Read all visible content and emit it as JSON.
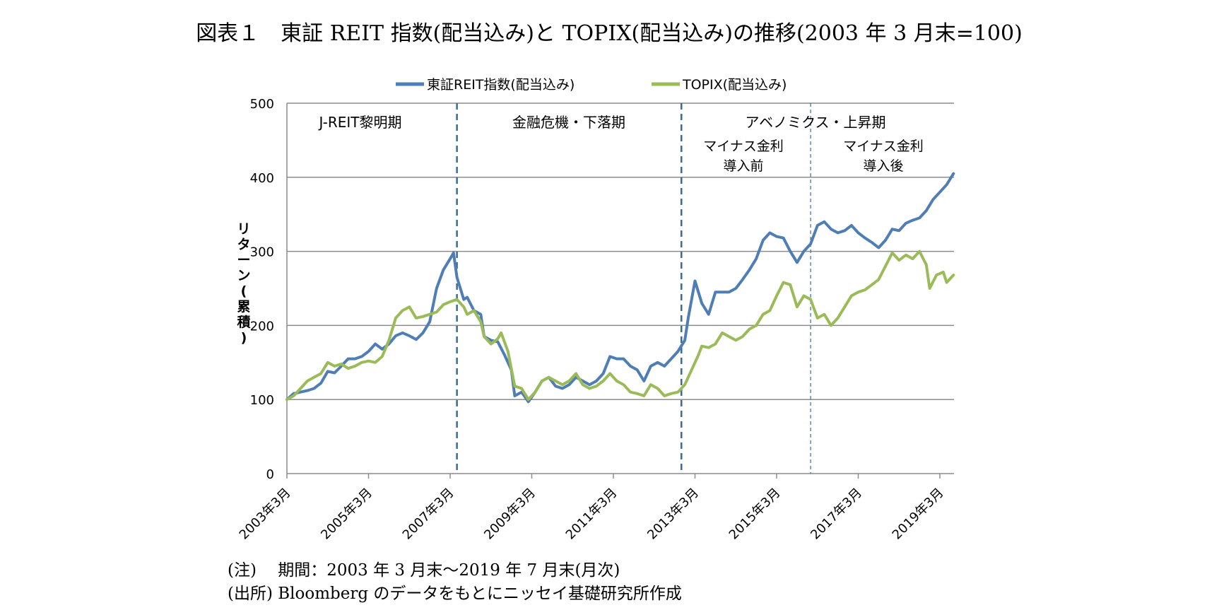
{
  "notes": {
    "period": "(注)　 期間：2003 年 3 月末～2019 年 7 月末(月次)",
    "source": "(出所) Bloomberg のデータをもとにニッセイ基礎研究所作成"
  },
  "chart_data": {
    "type": "line",
    "title": "図表１　東証 REIT 指数(配当込み)と TOPIX(配当込み)の推移(2003 年 3 月末=100)",
    "ylabel": "リターン(累積)",
    "xlabel": "",
    "ylim": [
      0,
      500
    ],
    "xlim": [
      "2003-03",
      "2019-07"
    ],
    "y_ticks": [
      "0",
      "100",
      "200",
      "300",
      "400",
      "500"
    ],
    "x_ticks": [
      "2003年3月",
      "2005年3月",
      "2007年3月",
      "2009年3月",
      "2011年3月",
      "2013年3月",
      "2015年3月",
      "2017年3月",
      "2019年3月"
    ],
    "grid": "horizontal",
    "legend": "top-center",
    "series": [
      {
        "name": "東証REIT指数(配当込み)",
        "color": "#4f7db5",
        "points": [
          [
            "2003-03",
            100
          ],
          [
            "2003-05",
            108
          ],
          [
            "2003-07",
            110
          ],
          [
            "2003-09",
            112
          ],
          [
            "2003-11",
            115
          ],
          [
            "2004-01",
            122
          ],
          [
            "2004-03",
            138
          ],
          [
            "2004-05",
            136
          ],
          [
            "2004-07",
            145
          ],
          [
            "2004-09",
            155
          ],
          [
            "2004-11",
            155
          ],
          [
            "2005-01",
            158
          ],
          [
            "2005-03",
            165
          ],
          [
            "2005-05",
            175
          ],
          [
            "2005-07",
            168
          ],
          [
            "2005-09",
            175
          ],
          [
            "2005-11",
            186
          ],
          [
            "2006-01",
            190
          ],
          [
            "2006-03",
            186
          ],
          [
            "2006-05",
            181
          ],
          [
            "2006-07",
            190
          ],
          [
            "2006-09",
            205
          ],
          [
            "2006-11",
            250
          ],
          [
            "2007-01",
            275
          ],
          [
            "2007-03",
            290
          ],
          [
            "2007-04",
            298
          ],
          [
            "2007-05",
            265
          ],
          [
            "2007-07",
            235
          ],
          [
            "2007-08",
            238
          ],
          [
            "2007-10",
            220
          ],
          [
            "2007-12",
            215
          ],
          [
            "2008-01",
            185
          ],
          [
            "2008-03",
            180
          ],
          [
            "2008-05",
            178
          ],
          [
            "2008-07",
            160
          ],
          [
            "2008-09",
            140
          ],
          [
            "2008-10",
            105
          ],
          [
            "2008-12",
            110
          ],
          [
            "2009-02",
            97
          ],
          [
            "2009-04",
            110
          ],
          [
            "2009-06",
            125
          ],
          [
            "2009-08",
            130
          ],
          [
            "2009-10",
            118
          ],
          [
            "2009-12",
            115
          ],
          [
            "2010-02",
            120
          ],
          [
            "2010-04",
            130
          ],
          [
            "2010-06",
            125
          ],
          [
            "2010-08",
            120
          ],
          [
            "2010-10",
            125
          ],
          [
            "2010-12",
            135
          ],
          [
            "2011-02",
            158
          ],
          [
            "2011-04",
            155
          ],
          [
            "2011-06",
            155
          ],
          [
            "2011-08",
            145
          ],
          [
            "2011-10",
            140
          ],
          [
            "2011-12",
            125
          ],
          [
            "2012-02",
            145
          ],
          [
            "2012-04",
            150
          ],
          [
            "2012-06",
            145
          ],
          [
            "2012-08",
            155
          ],
          [
            "2012-10",
            165
          ],
          [
            "2012-12",
            180
          ],
          [
            "2013-01",
            210
          ],
          [
            "2013-03",
            260
          ],
          [
            "2013-05",
            230
          ],
          [
            "2013-07",
            215
          ],
          [
            "2013-09",
            245
          ],
          [
            "2013-11",
            245
          ],
          [
            "2014-01",
            245
          ],
          [
            "2014-03",
            250
          ],
          [
            "2014-05",
            262
          ],
          [
            "2014-07",
            275
          ],
          [
            "2014-09",
            290
          ],
          [
            "2014-11",
            315
          ],
          [
            "2015-01",
            325
          ],
          [
            "2015-03",
            320
          ],
          [
            "2015-05",
            318
          ],
          [
            "2015-07",
            300
          ],
          [
            "2015-09",
            285
          ],
          [
            "2015-11",
            300
          ],
          [
            "2016-01",
            310
          ],
          [
            "2016-03",
            335
          ],
          [
            "2016-05",
            340
          ],
          [
            "2016-07",
            330
          ],
          [
            "2016-09",
            325
          ],
          [
            "2016-11",
            328
          ],
          [
            "2017-01",
            335
          ],
          [
            "2017-03",
            325
          ],
          [
            "2017-05",
            318
          ],
          [
            "2017-07",
            312
          ],
          [
            "2017-09",
            305
          ],
          [
            "2017-11",
            315
          ],
          [
            "2018-01",
            330
          ],
          [
            "2018-03",
            328
          ],
          [
            "2018-05",
            338
          ],
          [
            "2018-07",
            342
          ],
          [
            "2018-09",
            345
          ],
          [
            "2018-11",
            355
          ],
          [
            "2019-01",
            370
          ],
          [
            "2019-03",
            380
          ],
          [
            "2019-05",
            390
          ],
          [
            "2019-07",
            405
          ]
        ]
      },
      {
        "name": "TOPIX(配当込み)",
        "color": "#9bbb59",
        "points": [
          [
            "2003-03",
            100
          ],
          [
            "2003-05",
            105
          ],
          [
            "2003-07",
            115
          ],
          [
            "2003-09",
            125
          ],
          [
            "2003-11",
            130
          ],
          [
            "2004-01",
            135
          ],
          [
            "2004-03",
            150
          ],
          [
            "2004-05",
            145
          ],
          [
            "2004-07",
            148
          ],
          [
            "2004-09",
            142
          ],
          [
            "2004-11",
            145
          ],
          [
            "2005-01",
            150
          ],
          [
            "2005-03",
            152
          ],
          [
            "2005-05",
            150
          ],
          [
            "2005-07",
            158
          ],
          [
            "2005-09",
            180
          ],
          [
            "2005-11",
            210
          ],
          [
            "2006-01",
            220
          ],
          [
            "2006-03",
            225
          ],
          [
            "2006-05",
            210
          ],
          [
            "2006-07",
            212
          ],
          [
            "2006-09",
            215
          ],
          [
            "2006-11",
            218
          ],
          [
            "2007-01",
            228
          ],
          [
            "2007-03",
            232
          ],
          [
            "2007-05",
            235
          ],
          [
            "2007-07",
            225
          ],
          [
            "2007-08",
            215
          ],
          [
            "2007-10",
            220
          ],
          [
            "2007-12",
            205
          ],
          [
            "2008-01",
            185
          ],
          [
            "2008-03",
            175
          ],
          [
            "2008-05",
            182
          ],
          [
            "2008-06",
            190
          ],
          [
            "2008-08",
            165
          ],
          [
            "2008-10",
            118
          ],
          [
            "2008-12",
            115
          ],
          [
            "2009-02",
            100
          ],
          [
            "2009-04",
            110
          ],
          [
            "2009-06",
            125
          ],
          [
            "2009-08",
            130
          ],
          [
            "2009-10",
            125
          ],
          [
            "2009-12",
            120
          ],
          [
            "2010-02",
            125
          ],
          [
            "2010-04",
            135
          ],
          [
            "2010-06",
            120
          ],
          [
            "2010-08",
            115
          ],
          [
            "2010-10",
            118
          ],
          [
            "2010-12",
            125
          ],
          [
            "2011-02",
            135
          ],
          [
            "2011-04",
            125
          ],
          [
            "2011-06",
            120
          ],
          [
            "2011-08",
            110
          ],
          [
            "2011-10",
            108
          ],
          [
            "2011-12",
            105
          ],
          [
            "2012-02",
            120
          ],
          [
            "2012-04",
            115
          ],
          [
            "2012-06",
            105
          ],
          [
            "2012-08",
            108
          ],
          [
            "2012-10",
            110
          ],
          [
            "2012-12",
            120
          ],
          [
            "2013-02",
            140
          ],
          [
            "2013-04",
            160
          ],
          [
            "2013-05",
            172
          ],
          [
            "2013-07",
            170
          ],
          [
            "2013-09",
            175
          ],
          [
            "2013-11",
            190
          ],
          [
            "2014-01",
            185
          ],
          [
            "2014-03",
            180
          ],
          [
            "2014-05",
            185
          ],
          [
            "2014-07",
            195
          ],
          [
            "2014-09",
            200
          ],
          [
            "2014-11",
            215
          ],
          [
            "2015-01",
            220
          ],
          [
            "2015-03",
            240
          ],
          [
            "2015-05",
            258
          ],
          [
            "2015-07",
            255
          ],
          [
            "2015-09",
            225
          ],
          [
            "2015-11",
            240
          ],
          [
            "2016-01",
            235
          ],
          [
            "2016-03",
            210
          ],
          [
            "2016-05",
            215
          ],
          [
            "2016-07",
            200
          ],
          [
            "2016-09",
            210
          ],
          [
            "2016-11",
            225
          ],
          [
            "2017-01",
            240
          ],
          [
            "2017-03",
            245
          ],
          [
            "2017-05",
            248
          ],
          [
            "2017-07",
            255
          ],
          [
            "2017-09",
            262
          ],
          [
            "2017-11",
            280
          ],
          [
            "2018-01",
            298
          ],
          [
            "2018-03",
            288
          ],
          [
            "2018-05",
            295
          ],
          [
            "2018-07",
            290
          ],
          [
            "2018-09",
            300
          ],
          [
            "2018-11",
            282
          ],
          [
            "2018-12",
            250
          ],
          [
            "2019-02",
            268
          ],
          [
            "2019-04",
            272
          ],
          [
            "2019-05",
            258
          ],
          [
            "2019-07",
            268
          ]
        ]
      }
    ],
    "phase_labels": [
      "J-REIT黎明期",
      "金融危機・下落期",
      "アベノミクス・上昇期"
    ],
    "subphase_labels": [
      [
        "マイナス金利",
        "導入前"
      ],
      [
        "マイナス金利",
        "導入後"
      ]
    ],
    "dividers": [
      {
        "date": "2007-05",
        "style": "dashed-thick"
      },
      {
        "date": "2012-11",
        "style": "dashed-thick"
      },
      {
        "date": "2016-01",
        "style": "dashed-thin"
      }
    ]
  }
}
